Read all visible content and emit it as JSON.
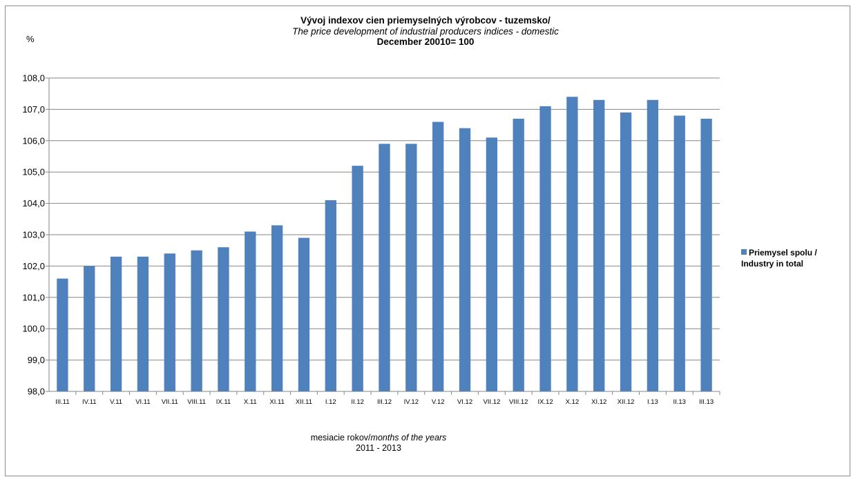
{
  "chart_data": {
    "type": "bar",
    "title": "Vývoj indexov cien priemyselných výrobcov - tuzemsko/",
    "subtitle": "The price development of industrial producers indices - domestic",
    "subtitle2": "December 20010= 100",
    "ylabel": "%",
    "xlabel": {
      "text_normal": "mesiacie rokov/",
      "text_italic": "months of the years",
      "line2": "2011 - 2013"
    },
    "ylim": [
      98,
      108
    ],
    "yticks": [
      "98,0",
      "99,0",
      "100,0",
      "101,0",
      "102,0",
      "103,0",
      "104,0",
      "105,0",
      "106,0",
      "107,0",
      "108,0"
    ],
    "grid": true,
    "legend_position": "right",
    "categories": [
      "III.11",
      "IV.11",
      "V.11",
      "VI.11",
      "VII.11",
      "VIII.11",
      "IX.11",
      "X.11",
      "XI.11",
      "XII.11",
      "I.12",
      "II.12",
      "III.12",
      "IV.12",
      "V.12",
      "VI.12",
      "VII.12",
      "VIII.12",
      "IX.12",
      "X.12",
      "XI.12",
      "XII.12",
      "I.13",
      "II.13",
      "III.13"
    ],
    "series": [
      {
        "name": "Priemysel spolu / Industry in total",
        "legend_line1": "Priemysel spolu /",
        "legend_line2": "Industry in total",
        "color": "#4f81bd",
        "values": [
          101.6,
          102.0,
          102.3,
          102.3,
          102.4,
          102.5,
          102.6,
          103.1,
          103.3,
          102.9,
          104.1,
          105.2,
          105.9,
          105.9,
          106.6,
          106.4,
          106.1,
          106.7,
          107.1,
          107.4,
          107.3,
          106.9,
          107.3,
          106.8,
          106.7
        ]
      }
    ]
  }
}
